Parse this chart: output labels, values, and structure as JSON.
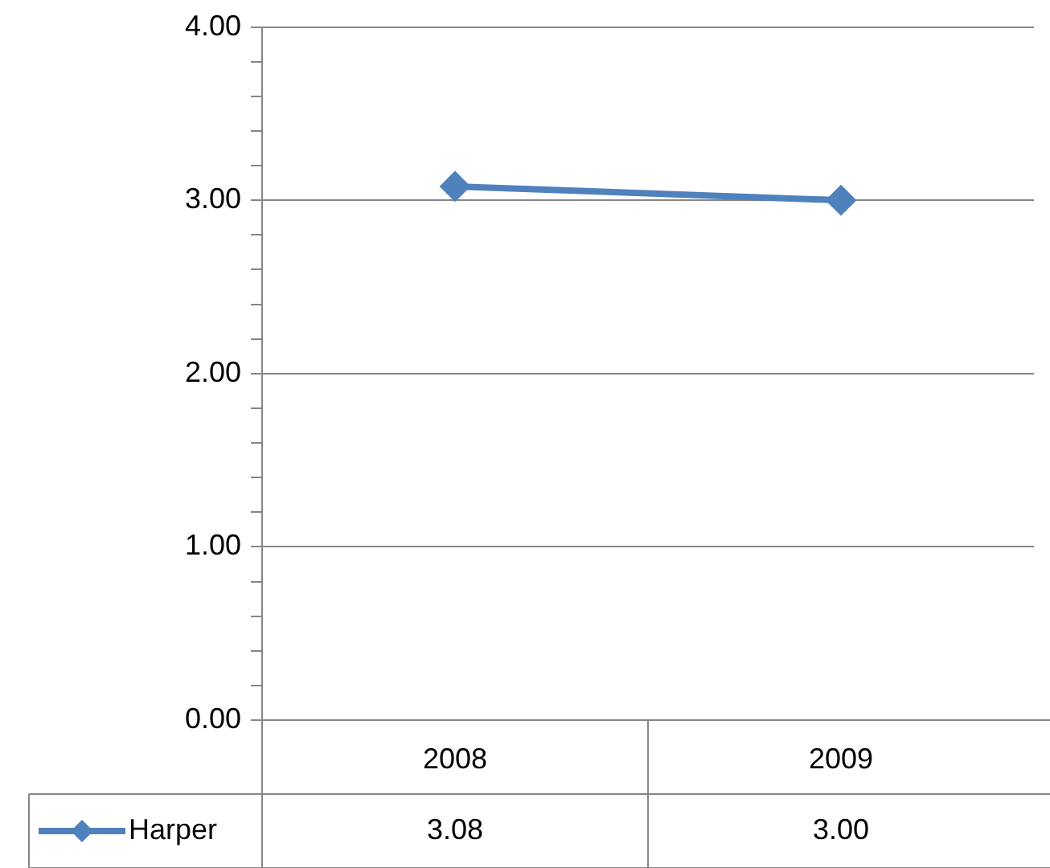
{
  "chart_data": {
    "type": "line",
    "categories": [
      "2008",
      "2009"
    ],
    "series": [
      {
        "name": "Harper",
        "color": "#4f81bd",
        "values": [
          3.08,
          3.0
        ],
        "value_labels": [
          "3.08",
          "3.00"
        ]
      }
    ],
    "ylim": [
      0,
      4
    ],
    "yticks": [
      {
        "value": 0,
        "label": "0.00"
      },
      {
        "value": 0.2,
        "label": null
      },
      {
        "value": 0.4,
        "label": null
      },
      {
        "value": 0.6,
        "label": null
      },
      {
        "value": 0.8,
        "label": null
      },
      {
        "value": 1,
        "label": "1.00"
      },
      {
        "value": 1.2,
        "label": null
      },
      {
        "value": 1.4,
        "label": null
      },
      {
        "value": 1.6,
        "label": null
      },
      {
        "value": 1.8,
        "label": null
      },
      {
        "value": 2,
        "label": "2.00"
      },
      {
        "value": 2.2,
        "label": null
      },
      {
        "value": 2.4,
        "label": null
      },
      {
        "value": 2.6,
        "label": null
      },
      {
        "value": 2.8,
        "label": null
      },
      {
        "value": 3,
        "label": "3.00"
      },
      {
        "value": 3.2,
        "label": null
      },
      {
        "value": 3.4,
        "label": null
      },
      {
        "value": 3.6,
        "label": null
      },
      {
        "value": 3.8,
        "label": null
      },
      {
        "value": 4,
        "label": "4.00"
      }
    ],
    "grid": "y",
    "marker": "diamond",
    "line_style": "solid",
    "legend": "bottom left"
  }
}
